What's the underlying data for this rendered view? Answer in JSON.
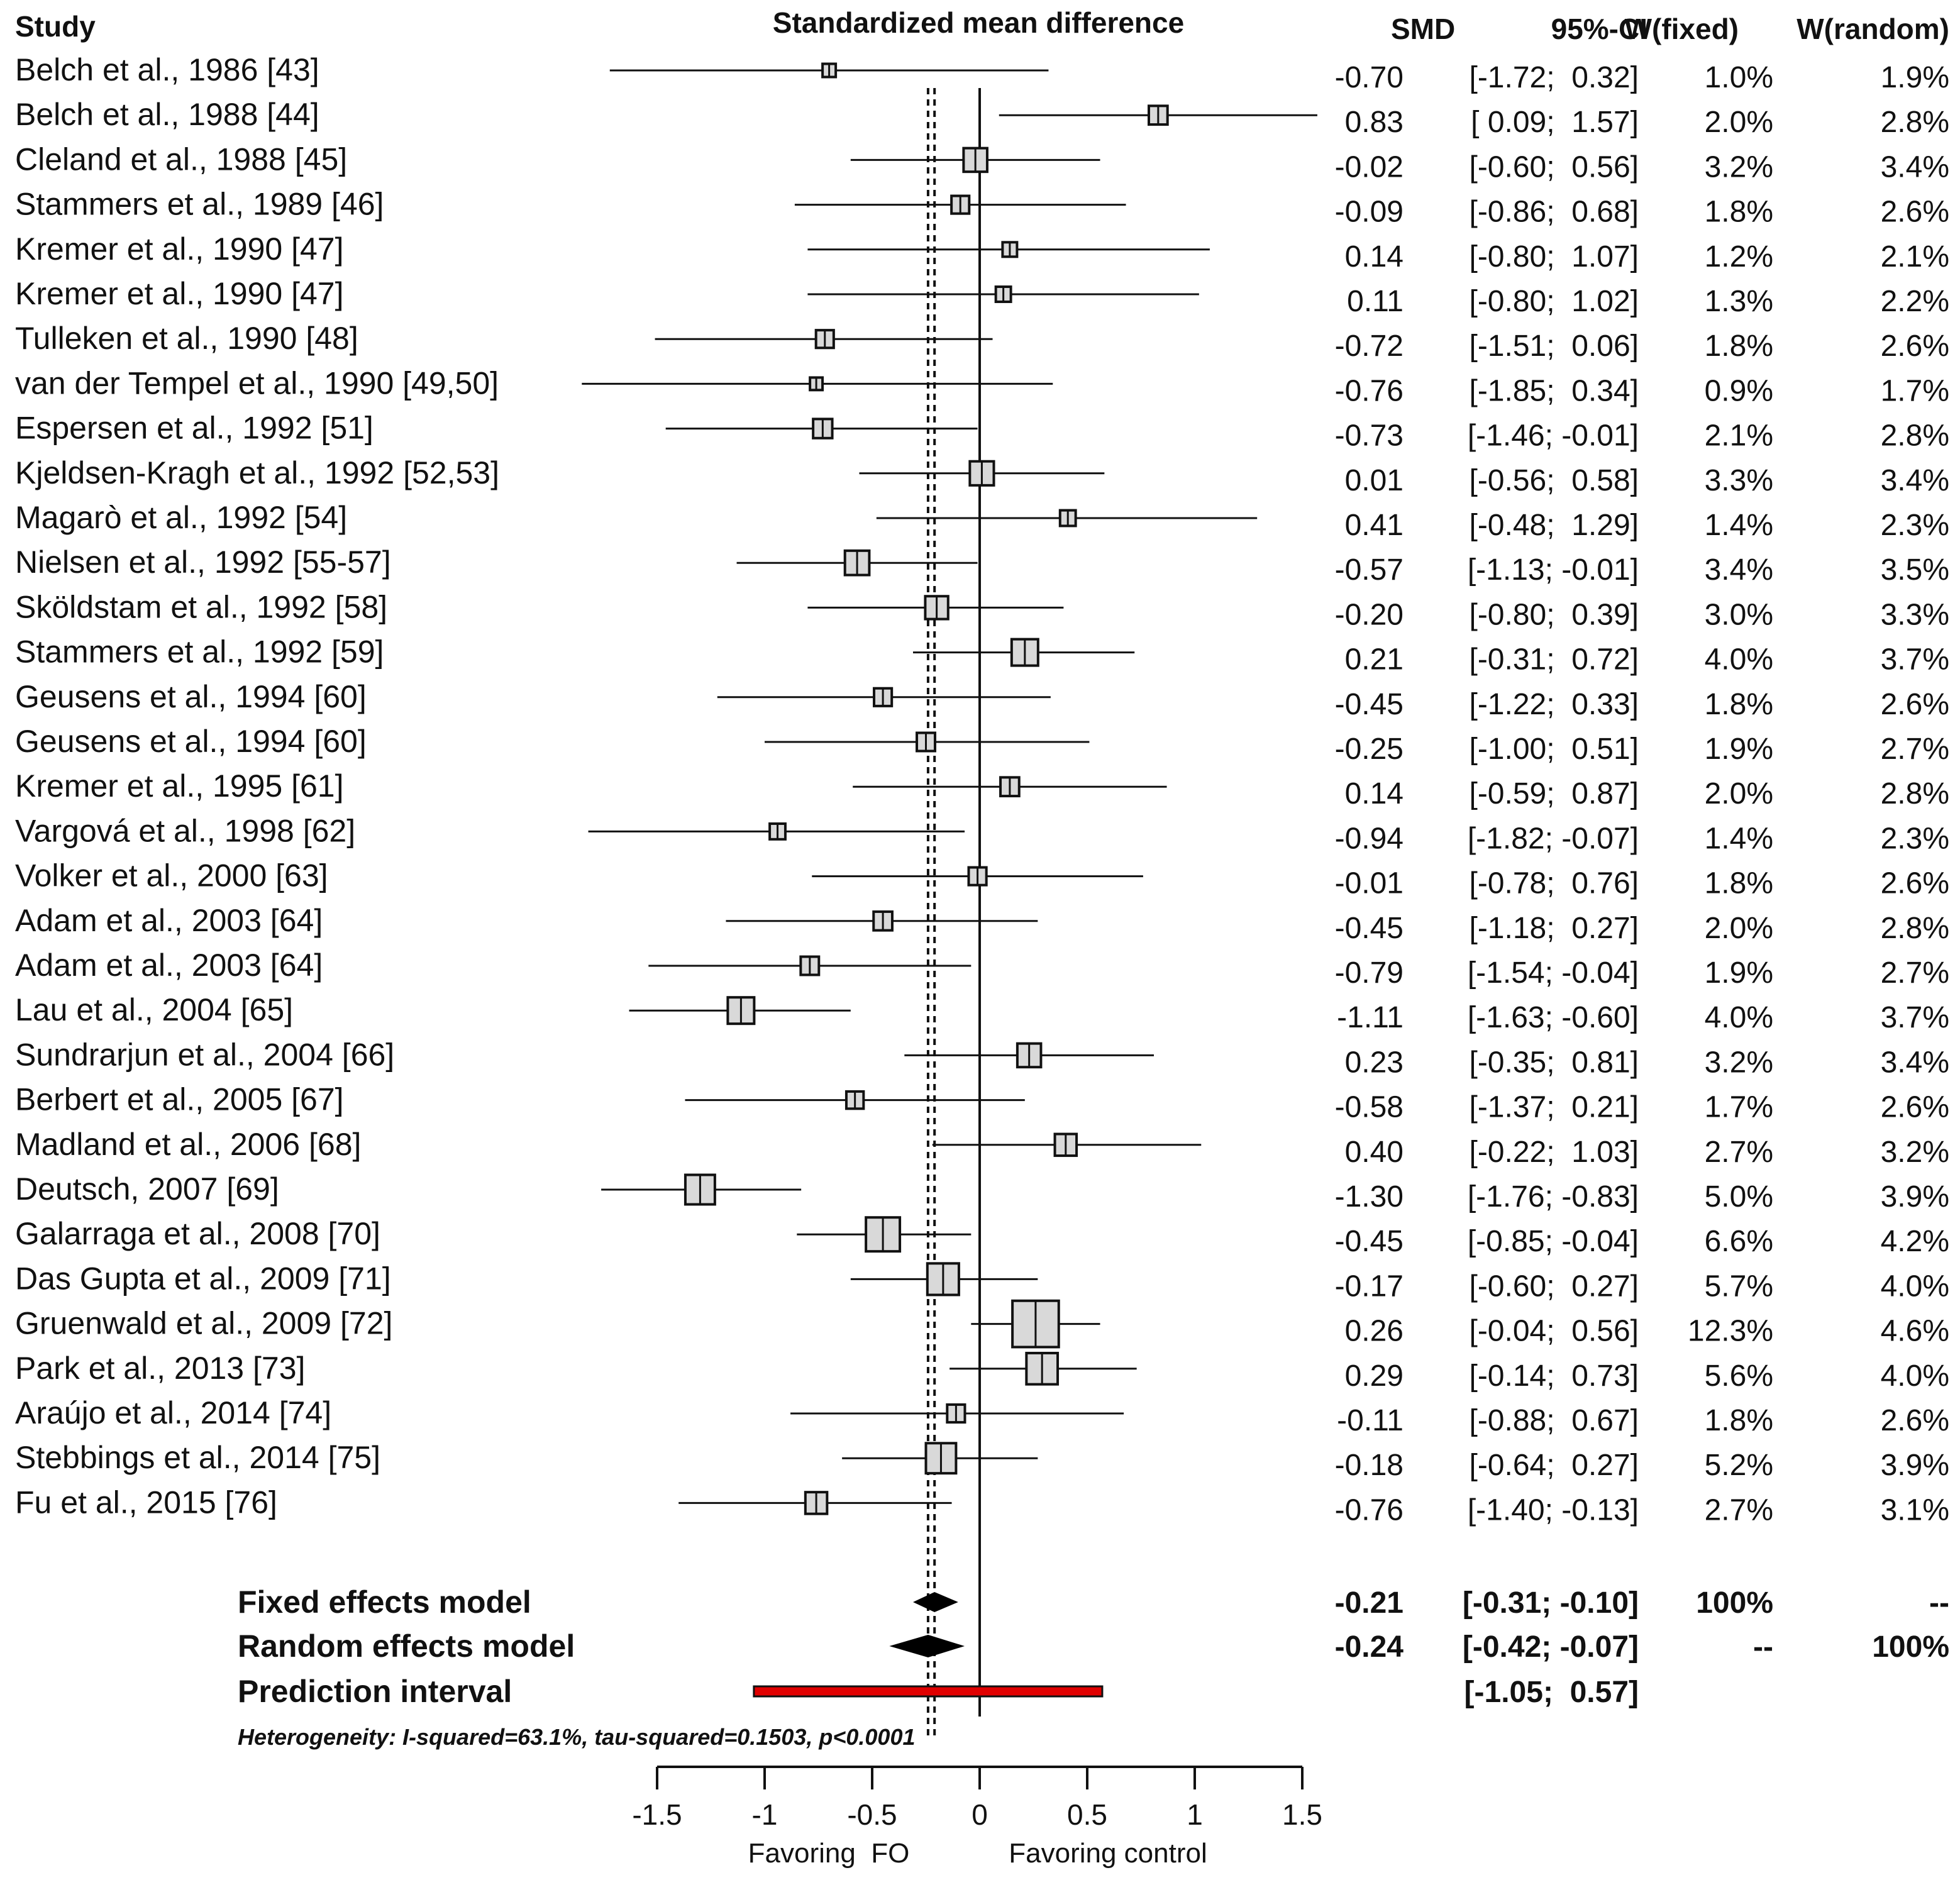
{
  "headers": {
    "study": "Study",
    "plot_title": "Standardized mean difference",
    "smd": "SMD",
    "ci": "95%-CI",
    "w_fixed": "W(fixed)",
    "w_random": "W(random)"
  },
  "colors": {
    "line": "#111111",
    "box_fill": "#d9d9d9",
    "prediction": "#e00000"
  },
  "chart_data": {
    "type": "forest",
    "title": "Standardized mean difference",
    "xlim": [
      -1.5,
      1.5
    ],
    "xticks": [
      -1.5,
      -1,
      -0.5,
      0,
      0.5,
      1,
      1.5
    ],
    "xtick_labels": [
      "-1.5",
      "-1",
      "-0.5",
      "0",
      "0.5",
      "1",
      "1.5"
    ],
    "xlabel_left": "Favoring  FO",
    "xlabel_right": "Favoring control",
    "studies": [
      {
        "name": "Belch et al., 1986 [43]",
        "smd": -0.7,
        "lo": -1.72,
        "hi": 0.32,
        "smd_text": "-0.70",
        "ci_text": "[-1.72;  0.32]",
        "wf": "1.0%",
        "wr": "1.9%"
      },
      {
        "name": "Belch et al., 1988 [44]",
        "smd": 0.83,
        "lo": 0.09,
        "hi": 1.57,
        "smd_text": "0.83",
        "ci_text": "[ 0.09;  1.57]",
        "wf": "2.0%",
        "wr": "2.8%"
      },
      {
        "name": "Cleland et al., 1988 [45]",
        "smd": -0.02,
        "lo": -0.6,
        "hi": 0.56,
        "smd_text": "-0.02",
        "ci_text": "[-0.60;  0.56]",
        "wf": "3.2%",
        "wr": "3.4%"
      },
      {
        "name": "Stammers et al., 1989 [46]",
        "smd": -0.09,
        "lo": -0.86,
        "hi": 0.68,
        "smd_text": "-0.09",
        "ci_text": "[-0.86;  0.68]",
        "wf": "1.8%",
        "wr": "2.6%"
      },
      {
        "name": "Kremer et al., 1990 [47]",
        "smd": 0.14,
        "lo": -0.8,
        "hi": 1.07,
        "smd_text": "0.14",
        "ci_text": "[-0.80;  1.07]",
        "wf": "1.2%",
        "wr": "2.1%"
      },
      {
        "name": "Kremer et al., 1990 [47]",
        "smd": 0.11,
        "lo": -0.8,
        "hi": 1.02,
        "smd_text": "0.11",
        "ci_text": "[-0.80;  1.02]",
        "wf": "1.3%",
        "wr": "2.2%"
      },
      {
        "name": "Tulleken et al., 1990 [48]",
        "smd": -0.72,
        "lo": -1.51,
        "hi": 0.06,
        "smd_text": "-0.72",
        "ci_text": "[-1.51;  0.06]",
        "wf": "1.8%",
        "wr": "2.6%"
      },
      {
        "name": "van der Tempel et al., 1990 [49,50]",
        "smd": -0.76,
        "lo": -1.85,
        "hi": 0.34,
        "smd_text": "-0.76",
        "ci_text": "[-1.85;  0.34]",
        "wf": "0.9%",
        "wr": "1.7%"
      },
      {
        "name": "Espersen et al., 1992 [51]",
        "smd": -0.73,
        "lo": -1.46,
        "hi": -0.01,
        "smd_text": "-0.73",
        "ci_text": "[-1.46; -0.01]",
        "wf": "2.1%",
        "wr": "2.8%"
      },
      {
        "name": "Kjeldsen-Kragh et al., 1992 [52,53]",
        "smd": 0.01,
        "lo": -0.56,
        "hi": 0.58,
        "smd_text": "0.01",
        "ci_text": "[-0.56;  0.58]",
        "wf": "3.3%",
        "wr": "3.4%"
      },
      {
        "name": "Magarò et al., 1992 [54]",
        "smd": 0.41,
        "lo": -0.48,
        "hi": 1.29,
        "smd_text": "0.41",
        "ci_text": "[-0.48;  1.29]",
        "wf": "1.4%",
        "wr": "2.3%"
      },
      {
        "name": "Nielsen et al., 1992 [55-57]",
        "smd": -0.57,
        "lo": -1.13,
        "hi": -0.01,
        "smd_text": "-0.57",
        "ci_text": "[-1.13; -0.01]",
        "wf": "3.4%",
        "wr": "3.5%"
      },
      {
        "name": "Sköldstam et al., 1992 [58]",
        "smd": -0.2,
        "lo": -0.8,
        "hi": 0.39,
        "smd_text": "-0.20",
        "ci_text": "[-0.80;  0.39]",
        "wf": "3.0%",
        "wr": "3.3%"
      },
      {
        "name": "Stammers et al., 1992 [59]",
        "smd": 0.21,
        "lo": -0.31,
        "hi": 0.72,
        "smd_text": "0.21",
        "ci_text": "[-0.31;  0.72]",
        "wf": "4.0%",
        "wr": "3.7%"
      },
      {
        "name": "Geusens et al., 1994 [60]",
        "smd": -0.45,
        "lo": -1.22,
        "hi": 0.33,
        "smd_text": "-0.45",
        "ci_text": "[-1.22;  0.33]",
        "wf": "1.8%",
        "wr": "2.6%"
      },
      {
        "name": "Geusens et al., 1994 [60]",
        "smd": -0.25,
        "lo": -1.0,
        "hi": 0.51,
        "smd_text": "-0.25",
        "ci_text": "[-1.00;  0.51]",
        "wf": "1.9%",
        "wr": "2.7%"
      },
      {
        "name": "Kremer et al., 1995 [61]",
        "smd": 0.14,
        "lo": -0.59,
        "hi": 0.87,
        "smd_text": "0.14",
        "ci_text": "[-0.59;  0.87]",
        "wf": "2.0%",
        "wr": "2.8%"
      },
      {
        "name": "Vargová et al., 1998 [62]",
        "smd": -0.94,
        "lo": -1.82,
        "hi": -0.07,
        "smd_text": "-0.94",
        "ci_text": "[-1.82; -0.07]",
        "wf": "1.4%",
        "wr": "2.3%"
      },
      {
        "name": "Volker et al., 2000 [63]",
        "smd": -0.01,
        "lo": -0.78,
        "hi": 0.76,
        "smd_text": "-0.01",
        "ci_text": "[-0.78;  0.76]",
        "wf": "1.8%",
        "wr": "2.6%"
      },
      {
        "name": "Adam et al., 2003 [64]",
        "smd": -0.45,
        "lo": -1.18,
        "hi": 0.27,
        "smd_text": "-0.45",
        "ci_text": "[-1.18;  0.27]",
        "wf": "2.0%",
        "wr": "2.8%"
      },
      {
        "name": "Adam et al., 2003 [64]",
        "smd": -0.79,
        "lo": -1.54,
        "hi": -0.04,
        "smd_text": "-0.79",
        "ci_text": "[-1.54; -0.04]",
        "wf": "1.9%",
        "wr": "2.7%"
      },
      {
        "name": "Lau et al., 2004 [65]",
        "smd": -1.11,
        "lo": -1.63,
        "hi": -0.6,
        "smd_text": "-1.11",
        "ci_text": "[-1.63; -0.60]",
        "wf": "4.0%",
        "wr": "3.7%"
      },
      {
        "name": "Sundrarjun et al., 2004 [66]",
        "smd": 0.23,
        "lo": -0.35,
        "hi": 0.81,
        "smd_text": "0.23",
        "ci_text": "[-0.35;  0.81]",
        "wf": "3.2%",
        "wr": "3.4%"
      },
      {
        "name": "Berbert et al., 2005 [67]",
        "smd": -0.58,
        "lo": -1.37,
        "hi": 0.21,
        "smd_text": "-0.58",
        "ci_text": "[-1.37;  0.21]",
        "wf": "1.7%",
        "wr": "2.6%"
      },
      {
        "name": "Madland et al., 2006 [68]",
        "smd": 0.4,
        "lo": -0.22,
        "hi": 1.03,
        "smd_text": "0.40",
        "ci_text": "[-0.22;  1.03]",
        "wf": "2.7%",
        "wr": "3.2%"
      },
      {
        "name": "Deutsch, 2007 [69]",
        "smd": -1.3,
        "lo": -1.76,
        "hi": -0.83,
        "smd_text": "-1.30",
        "ci_text": "[-1.76; -0.83]",
        "wf": "5.0%",
        "wr": "3.9%"
      },
      {
        "name": "Galarraga et al., 2008 [70]",
        "smd": -0.45,
        "lo": -0.85,
        "hi": -0.04,
        "smd_text": "-0.45",
        "ci_text": "[-0.85; -0.04]",
        "wf": "6.6%",
        "wr": "4.2%"
      },
      {
        "name": "Das Gupta et al., 2009 [71]",
        "smd": -0.17,
        "lo": -0.6,
        "hi": 0.27,
        "smd_text": "-0.17",
        "ci_text": "[-0.60;  0.27]",
        "wf": "5.7%",
        "wr": "4.0%"
      },
      {
        "name": "Gruenwald et al., 2009 [72]",
        "smd": 0.26,
        "lo": -0.04,
        "hi": 0.56,
        "smd_text": "0.26",
        "ci_text": "[-0.04;  0.56]",
        "wf": "12.3%",
        "wr": "4.6%"
      },
      {
        "name": "Park et al., 2013 [73]",
        "smd": 0.29,
        "lo": -0.14,
        "hi": 0.73,
        "smd_text": "0.29",
        "ci_text": "[-0.14;  0.73]",
        "wf": "5.6%",
        "wr": "4.0%"
      },
      {
        "name": "Araújo et al., 2014 [74]",
        "smd": -0.11,
        "lo": -0.88,
        "hi": 0.67,
        "smd_text": "-0.11",
        "ci_text": "[-0.88;  0.67]",
        "wf": "1.8%",
        "wr": "2.6%"
      },
      {
        "name": "Stebbings et al., 2014 [75]",
        "smd": -0.18,
        "lo": -0.64,
        "hi": 0.27,
        "smd_text": "-0.18",
        "ci_text": "[-0.64;  0.27]",
        "wf": "5.2%",
        "wr": "3.9%"
      },
      {
        "name": "Fu et al., 2015 [76]",
        "smd": -0.76,
        "lo": -1.4,
        "hi": -0.13,
        "smd_text": "-0.76",
        "ci_text": "[-1.40; -0.13]",
        "wf": "2.7%",
        "wr": "3.1%"
      }
    ],
    "fixed": {
      "label": "Fixed effects model",
      "smd": -0.21,
      "lo": -0.31,
      "hi": -0.1,
      "smd_text": "-0.21",
      "ci_text": "[-0.31; -0.10]",
      "wf": "100%",
      "wr": "--"
    },
    "random": {
      "label": "Random effects model",
      "smd": -0.24,
      "lo": -0.42,
      "hi": -0.07,
      "smd_text": "-0.24",
      "ci_text": "[-0.42; -0.07]",
      "wf": "--",
      "wr": "100%"
    },
    "prediction": {
      "label": "Prediction interval",
      "lo": -1.05,
      "hi": 0.57,
      "ci_text": "[-1.05;  0.57]"
    },
    "heterogeneity": "Heterogeneity: I-squared=63.1%, tau-squared=0.1503, p<0.0001"
  }
}
